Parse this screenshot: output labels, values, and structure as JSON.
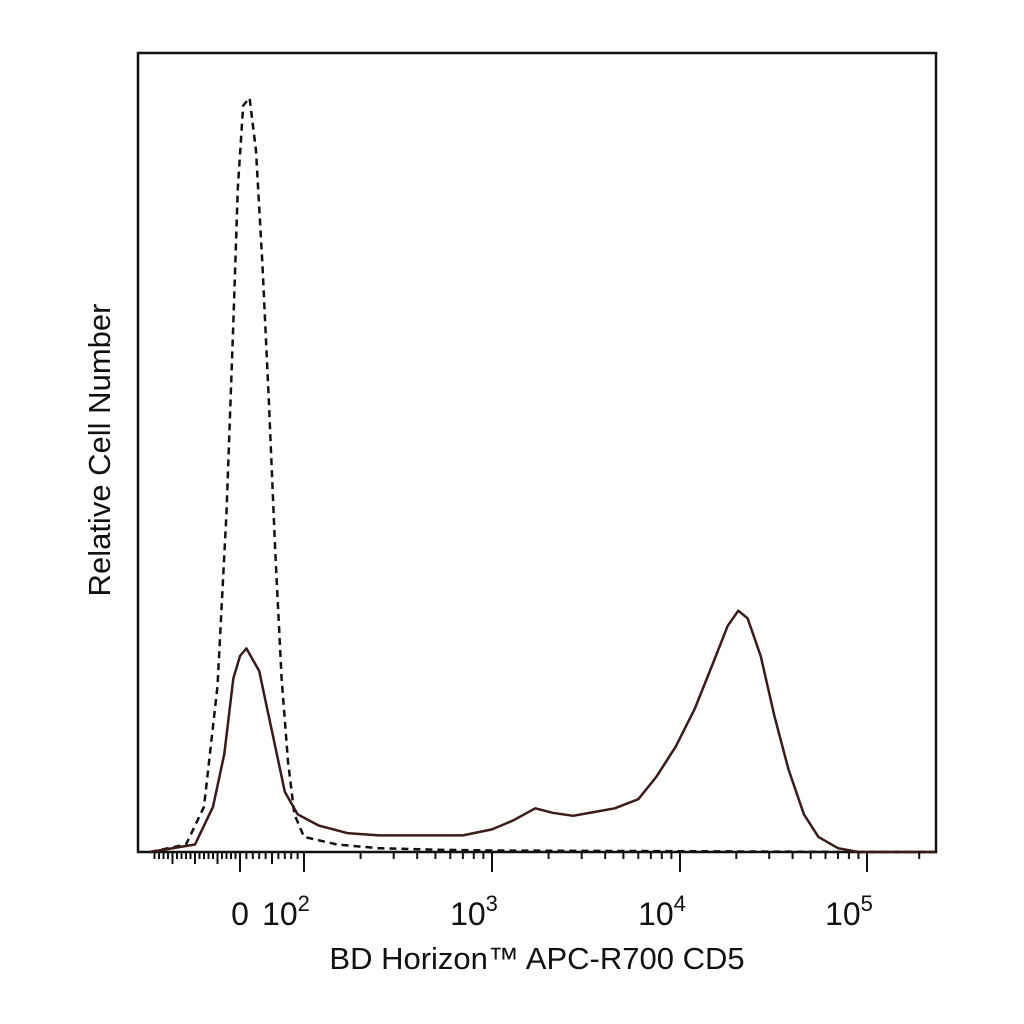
{
  "chart_data": {
    "type": "line",
    "title": "",
    "xlabel": "BD Horizon™ APC-R700 CD5",
    "ylabel": "Relative Cell Number",
    "x_scale": "biexponential (linear near 0, log above ~100)",
    "xlim": [
      -200,
      250000
    ],
    "ylim": [
      0,
      1
    ],
    "grid": false,
    "legend": "none",
    "x_tick_labels": [
      {
        "value": 0,
        "base": "0",
        "exp": ""
      },
      {
        "value": 100,
        "base": "10",
        "exp": "2"
      },
      {
        "value": 1000,
        "base": "10",
        "exp": "3"
      },
      {
        "value": 10000,
        "base": "10",
        "exp": "4"
      },
      {
        "value": 100000,
        "base": "10",
        "exp": "5"
      }
    ],
    "series": [
      {
        "style": "dashed",
        "color": "#111111",
        "points": [
          [
            -200,
            0.0
          ],
          [
            -120,
            0.01
          ],
          [
            -80,
            0.06
          ],
          [
            -50,
            0.22
          ],
          [
            -30,
            0.45
          ],
          [
            -15,
            0.7
          ],
          [
            -5,
            0.88
          ],
          [
            5,
            0.99
          ],
          [
            15,
            1.0
          ],
          [
            25,
            0.93
          ],
          [
            35,
            0.78
          ],
          [
            45,
            0.6
          ],
          [
            55,
            0.4
          ],
          [
            65,
            0.23
          ],
          [
            75,
            0.12
          ],
          [
            85,
            0.05
          ],
          [
            100,
            0.02
          ],
          [
            150,
            0.01
          ],
          [
            250,
            0.005
          ],
          [
            500,
            0.003
          ],
          [
            1000,
            0.002
          ],
          [
            10000,
            0.001
          ],
          [
            100000,
            0.0
          ],
          [
            250000,
            0.0
          ]
        ]
      },
      {
        "style": "solid",
        "color": "#3a1a1a",
        "points": [
          [
            -200,
            0.0
          ],
          [
            -100,
            0.01
          ],
          [
            -60,
            0.06
          ],
          [
            -35,
            0.13
          ],
          [
            -15,
            0.23
          ],
          [
            0,
            0.26
          ],
          [
            10,
            0.27
          ],
          [
            20,
            0.255
          ],
          [
            30,
            0.24
          ],
          [
            40,
            0.2
          ],
          [
            55,
            0.14
          ],
          [
            70,
            0.08
          ],
          [
            90,
            0.05
          ],
          [
            120,
            0.035
          ],
          [
            170,
            0.025
          ],
          [
            250,
            0.022
          ],
          [
            400,
            0.022
          ],
          [
            700,
            0.022
          ],
          [
            1000,
            0.03
          ],
          [
            1300,
            0.042
          ],
          [
            1700,
            0.058
          ],
          [
            2100,
            0.052
          ],
          [
            2700,
            0.048
          ],
          [
            3500,
            0.053
          ],
          [
            4500,
            0.058
          ],
          [
            6000,
            0.07
          ],
          [
            7500,
            0.1
          ],
          [
            9500,
            0.14
          ],
          [
            12000,
            0.19
          ],
          [
            15000,
            0.25
          ],
          [
            18000,
            0.3
          ],
          [
            20500,
            0.32
          ],
          [
            23000,
            0.31
          ],
          [
            27000,
            0.26
          ],
          [
            32000,
            0.18
          ],
          [
            38000,
            0.11
          ],
          [
            46000,
            0.05
          ],
          [
            55000,
            0.02
          ],
          [
            70000,
            0.005
          ],
          [
            90000,
            0.0
          ],
          [
            250000,
            0.0
          ]
        ]
      }
    ]
  }
}
